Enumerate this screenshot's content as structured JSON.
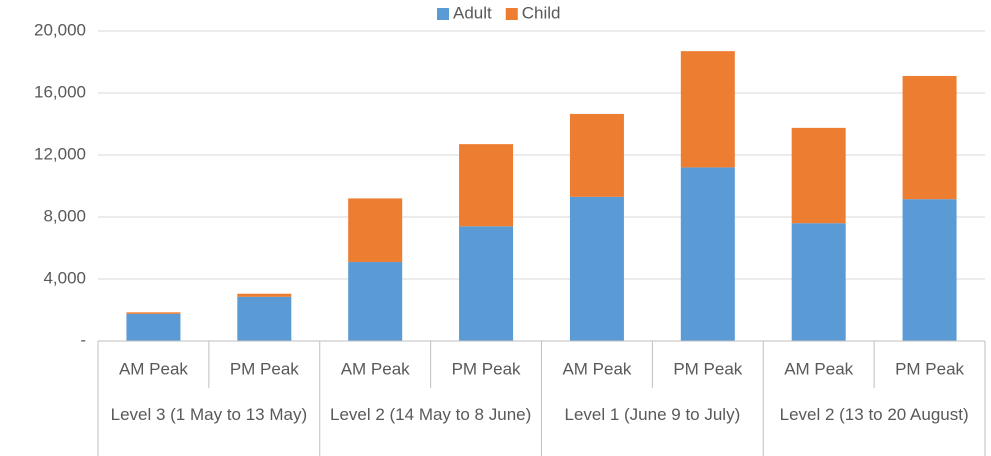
{
  "chart_data": {
    "type": "stacked_bar",
    "categories": [
      "AM Peak",
      "PM Peak",
      "AM Peak",
      "PM Peak",
      "AM Peak",
      "PM Peak",
      "AM Peak",
      "PM Peak"
    ],
    "groups": [
      "Level 3 (1 May to 13 May)",
      "Level 2 (14 May to 8 June)",
      "Level 1 (June 9 to July)",
      "Level 2 (13 to 20 August)"
    ],
    "series": [
      {
        "name": "Adult",
        "color": "#5b9bd5",
        "values": [
          1750,
          2850,
          5100,
          7400,
          9300,
          11200,
          7600,
          9150
        ]
      },
      {
        "name": "Child",
        "color": "#ed7d31",
        "values": [
          100,
          200,
          4100,
          5300,
          5350,
          7500,
          6150,
          7950
        ]
      }
    ],
    "ylim": [
      0,
      20000
    ],
    "yticks": [
      {
        "value": 0,
        "label": "-"
      },
      {
        "value": 4000,
        "label": "4,000"
      },
      {
        "value": 8000,
        "label": "8,000"
      },
      {
        "value": 12000,
        "label": "12,000"
      },
      {
        "value": 16000,
        "label": "16,000"
      },
      {
        "value": 20000,
        "label": "20,000"
      }
    ],
    "grid": true,
    "legend": "top"
  }
}
